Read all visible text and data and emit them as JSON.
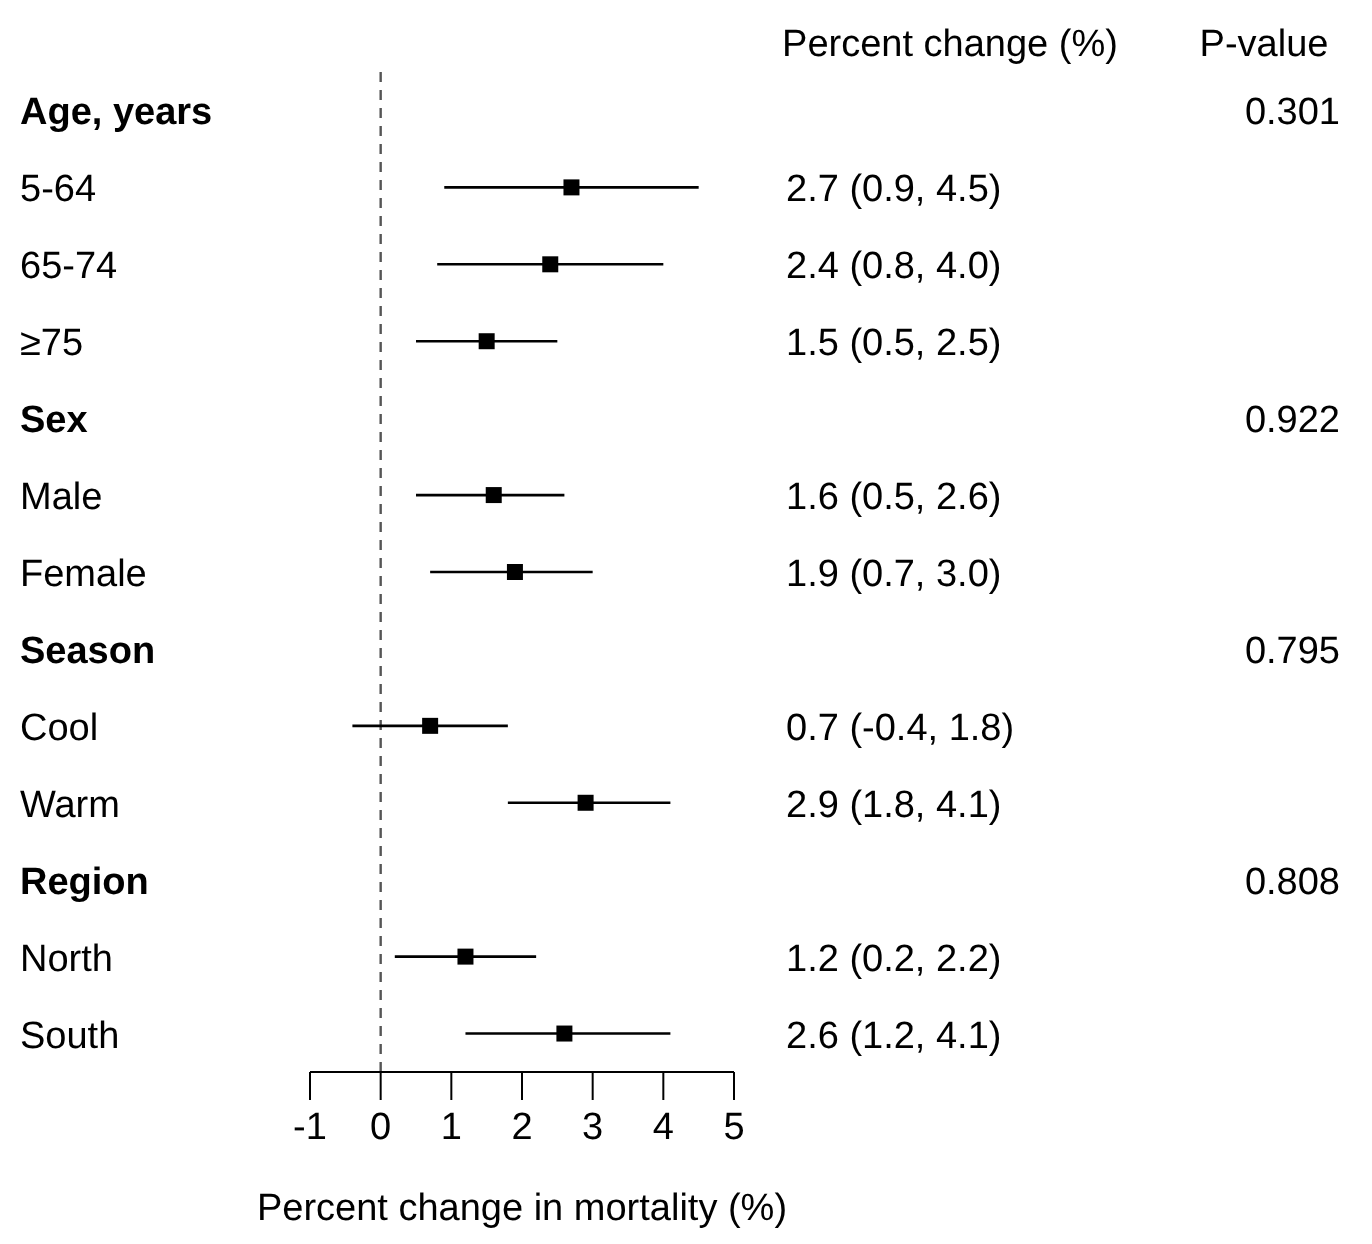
{
  "chart_data": {
    "type": "scatter",
    "orientation": "horizontal",
    "xlabel": "Percent change in mortality (%)",
    "categories": [
      "Age, years",
      "5-64",
      "65-74",
      "≥75",
      "Sex",
      "Male",
      "Female",
      "Season",
      "Cool",
      "Warm",
      "Region",
      "North",
      "South"
    ],
    "values": [
      null,
      2.7,
      2.4,
      1.5,
      null,
      1.6,
      1.9,
      null,
      0.7,
      2.9,
      null,
      1.2,
      2.6
    ],
    "errors": [
      null,
      [
        0.9,
        4.5
      ],
      [
        0.8,
        4.0
      ],
      [
        0.5,
        2.5
      ],
      null,
      [
        0.5,
        2.6
      ],
      [
        0.7,
        3.0
      ],
      null,
      [
        -0.4,
        1.8
      ],
      [
        1.8,
        4.1
      ],
      null,
      [
        0.2,
        2.2
      ],
      [
        1.2,
        4.1
      ]
    ],
    "value_labels": [
      null,
      "2.7 (0.9, 4.5)",
      "2.4 (0.8, 4.0)",
      "1.5 (0.5, 2.5)",
      null,
      "1.6 (0.5, 2.6)",
      "1.9 (0.7, 3.0)",
      null,
      "0.7 (-0.4, 1.8)",
      "2.9 (1.8, 4.1)",
      null,
      "1.2 (0.2, 2.2)",
      "2.6 (1.2, 4.1)"
    ],
    "color": "#000000",
    "marker": "square",
    "xlim": [
      -1,
      5
    ],
    "xticks": [
      -1,
      0,
      1,
      2,
      3,
      4,
      5
    ],
    "ref_lines": [
      {
        "axis": "x",
        "value": 0,
        "line_style": "dashed",
        "color": "#555555"
      }
    ],
    "annotations": [
      "Percent change (%)",
      "P-value",
      "0.301",
      "0.922",
      "0.795",
      "0.808"
    ],
    "grid": false,
    "legend": false
  }
}
